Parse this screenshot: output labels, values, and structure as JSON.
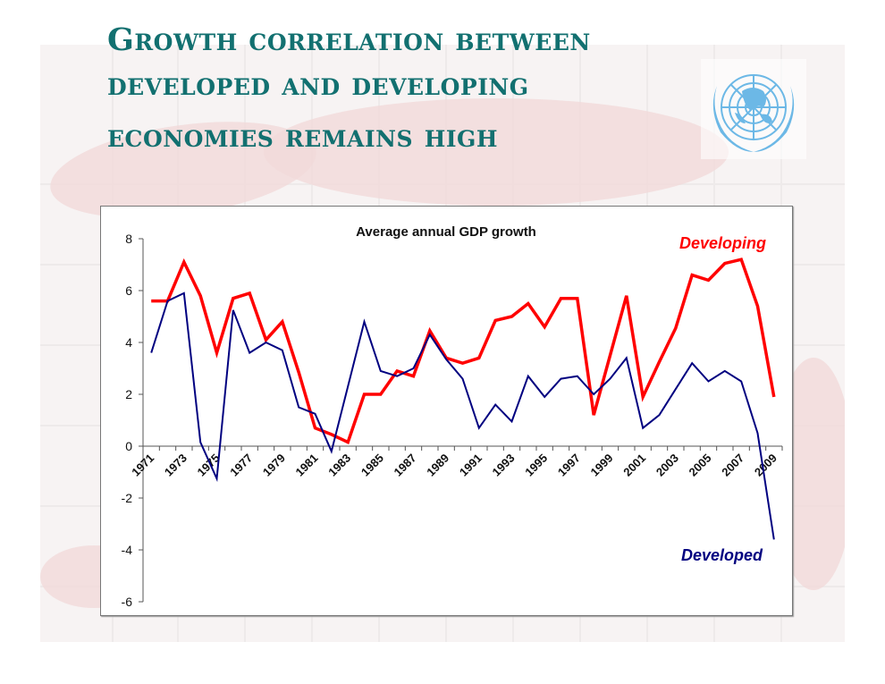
{
  "slide": {
    "title_lines": [
      "Growth correlation between",
      "developed and developing",
      "economies remains high"
    ],
    "logo": "un-emblem-icon",
    "colors": {
      "title": "#127070",
      "logo": "#6cb8e6"
    }
  },
  "chart_data": {
    "type": "line",
    "title": "Average annual GDP growth",
    "xlabel": "",
    "ylabel": "",
    "x": [
      1971,
      1972,
      1973,
      1974,
      1975,
      1976,
      1977,
      1978,
      1979,
      1980,
      1981,
      1982,
      1983,
      1984,
      1985,
      1986,
      1987,
      1988,
      1989,
      1990,
      1991,
      1992,
      1993,
      1994,
      1995,
      1996,
      1997,
      1998,
      1999,
      2000,
      2001,
      2002,
      2003,
      2004,
      2005,
      2006,
      2007,
      2008,
      2009
    ],
    "x_tick_labels": [
      "1971",
      "1973",
      "1975",
      "1977",
      "1979",
      "1981",
      "1983",
      "1985",
      "1987",
      "1989",
      "1991",
      "1993",
      "1995",
      "1997",
      "1999",
      "2001",
      "2003",
      "2005",
      "2007",
      "2009"
    ],
    "ylim": [
      -6,
      8
    ],
    "y_ticks": [
      -6,
      -4,
      -2,
      0,
      2,
      4,
      6,
      8
    ],
    "grid": false,
    "legend": "inline labels: Developing top-right, Developed bottom-right",
    "series": [
      {
        "name": "Developing",
        "color": "#ff0000",
        "values": [
          5.6,
          5.6,
          7.1,
          5.8,
          3.6,
          5.7,
          5.9,
          4.1,
          4.8,
          2.85,
          0.7,
          0.45,
          0.15,
          2.0,
          2.0,
          2.9,
          2.7,
          4.45,
          3.4,
          3.2,
          3.4,
          4.85,
          5.0,
          5.5,
          4.6,
          5.7,
          5.7,
          1.2,
          3.5,
          5.8,
          1.9,
          3.25,
          4.55,
          6.6,
          6.4,
          7.05,
          7.2,
          5.4,
          1.9
        ]
      },
      {
        "name": "Developed",
        "color": "#000080",
        "values": [
          3.6,
          5.6,
          5.9,
          0.15,
          -1.25,
          5.25,
          3.6,
          4.0,
          3.7,
          1.5,
          1.25,
          -0.2,
          2.3,
          4.8,
          2.9,
          2.7,
          3.0,
          4.3,
          3.35,
          2.6,
          0.7,
          1.6,
          0.95,
          2.7,
          1.9,
          2.6,
          2.7,
          2.0,
          2.6,
          3.4,
          0.7,
          1.2,
          2.2,
          3.2,
          2.5,
          2.9,
          2.5,
          0.5,
          -3.6
        ]
      }
    ]
  }
}
